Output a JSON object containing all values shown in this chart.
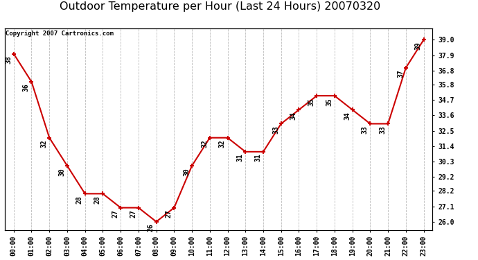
{
  "title": "Outdoor Temperature per Hour (Last 24 Hours) 20070320",
  "copyright_text": "Copyright 2007 Cartronics.com",
  "hours": [
    "00:00",
    "01:00",
    "02:00",
    "03:00",
    "04:00",
    "05:00",
    "06:00",
    "07:00",
    "08:00",
    "09:00",
    "10:00",
    "11:00",
    "12:00",
    "13:00",
    "14:00",
    "15:00",
    "16:00",
    "17:00",
    "18:00",
    "19:00",
    "20:00",
    "21:00",
    "22:00",
    "23:00"
  ],
  "temps": [
    38,
    36,
    32,
    30,
    28,
    28,
    27,
    27,
    26,
    27,
    30,
    32,
    32,
    31,
    31,
    33,
    34,
    35,
    35,
    34,
    33,
    33,
    37,
    39
  ],
  "ylim": [
    25.4,
    39.8
  ],
  "yticks_right": [
    39.0,
    37.9,
    36.8,
    35.8,
    34.7,
    33.6,
    32.5,
    31.4,
    30.3,
    29.2,
    28.2,
    27.1,
    26.0
  ],
  "line_color": "#cc0000",
  "bg_color": "#ffffff",
  "grid_color": "#bbbbbb",
  "title_fontsize": 11.5,
  "tick_fontsize": 7,
  "annot_fontsize": 7,
  "copy_fontsize": 6.5
}
